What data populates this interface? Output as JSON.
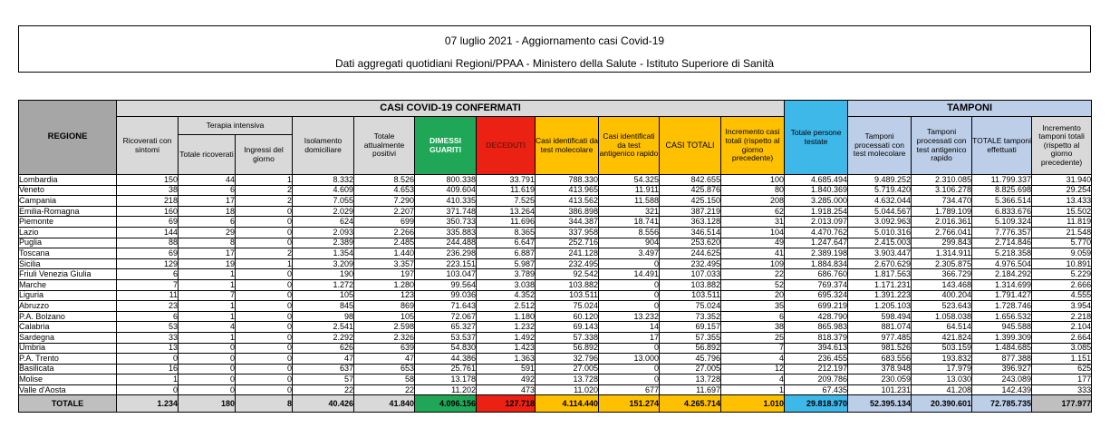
{
  "report": {
    "title_line1": "07 luglio 2021 - Aggiornamento casi Covid-19",
    "title_line2": "Dati aggregati quotidiani Regioni/PPAA - Ministero della Salute - Istituto Superiore di Sanità"
  },
  "table": {
    "group_headers": {
      "casi_confermati": "CASI COVID-19 CONFERMATI",
      "tamponi": "TAMPONI"
    },
    "columns": {
      "regione": "REGIONE",
      "ricoverati_sintomi": "Ricoverati con sintomi",
      "terapia_intensiva": "Terapia intensiva",
      "ti_totale_ricoverati": "Totale ricoverati",
      "ti_ingressi_giorno": "Ingressi del giorno",
      "isolamento_domiciliare": "Isolamento domiciliare",
      "totale_attualmente_positivi": "Totale attualmente positivi",
      "dimessi_guariti": "DIMESSI GUARITI",
      "deceduti": "DECEDUTI",
      "casi_test_molecolare": "Casi identificati da test molecolare",
      "casi_test_antigenico": "Casi identificati da test antigenico rapido",
      "casi_totali": "CASI TOTALI",
      "incremento_casi": "Incremento casi totali (rispetto al giorno precedente)",
      "persone_testate": "Totale persone testate",
      "tamponi_molecolare": "Tamponi processati con test molecolare",
      "tamponi_antigenico": "Tamponi processati con test antigenico rapido",
      "totale_tamponi": "TOTALE tamponi effettuati",
      "incremento_tamponi": "Incremento tamponi totali (rispetto al giorno precedente)"
    },
    "rows": [
      {
        "regione": "Lombardia",
        "values": [
          "150",
          "44",
          "1",
          "8.332",
          "8.526",
          "800.338",
          "33.791",
          "788.330",
          "54.325",
          "842.655",
          "100",
          "4.685.494",
          "9.489.252",
          "2.310.085",
          "11.799.337",
          "31.940"
        ]
      },
      {
        "regione": "Veneto",
        "values": [
          "38",
          "6",
          "2",
          "4.609",
          "4.653",
          "409.604",
          "11.619",
          "413.965",
          "11.911",
          "425.876",
          "80",
          "1.840.369",
          "5.719.420",
          "3.106.278",
          "8.825.698",
          "29.254"
        ]
      },
      {
        "regione": "Campania",
        "values": [
          "218",
          "17",
          "2",
          "7.055",
          "7.290",
          "410.335",
          "7.525",
          "413.562",
          "11.588",
          "425.150",
          "208",
          "3.285.000",
          "4.632.044",
          "734.470",
          "5.366.514",
          "13.433"
        ]
      },
      {
        "regione": "Emilia-Romagna",
        "values": [
          "160",
          "18",
          "0",
          "2.029",
          "2.207",
          "371.748",
          "13.264",
          "386.898",
          "321",
          "387.219",
          "62",
          "1.918.254",
          "5.044.567",
          "1.789.109",
          "6.833.676",
          "15.502"
        ]
      },
      {
        "regione": "Piemonte",
        "values": [
          "69",
          "6",
          "0",
          "624",
          "699",
          "350.733",
          "11.696",
          "344.387",
          "18.741",
          "363.128",
          "31",
          "2.013.097",
          "3.092.963",
          "2.016.361",
          "5.109.324",
          "11.819"
        ]
      },
      {
        "regione": "Lazio",
        "values": [
          "144",
          "29",
          "0",
          "2.093",
          "2.266",
          "335.883",
          "8.365",
          "337.958",
          "8.556",
          "346.514",
          "104",
          "4.470.762",
          "5.010.316",
          "2.766.041",
          "7.776.357",
          "21.548"
        ]
      },
      {
        "regione": "Puglia",
        "values": [
          "88",
          "8",
          "0",
          "2.389",
          "2.485",
          "244.488",
          "6.647",
          "252.716",
          "904",
          "253.620",
          "49",
          "1.247.647",
          "2.415.003",
          "299.843",
          "2.714.846",
          "5.770"
        ]
      },
      {
        "regione": "Toscana",
        "values": [
          "69",
          "17",
          "2",
          "1.354",
          "1.440",
          "236.298",
          "6.887",
          "241.128",
          "3.497",
          "244.625",
          "41",
          "2.389.198",
          "3.903.447",
          "1.314.911",
          "5.218.358",
          "9.059"
        ]
      },
      {
        "regione": "Sicilia",
        "values": [
          "129",
          "19",
          "1",
          "3.209",
          "3.357",
          "223.151",
          "5.987",
          "232.495",
          "0",
          "232.495",
          "109",
          "1.884.834",
          "2.670.629",
          "2.305.875",
          "4.976.504",
          "10.891"
        ]
      },
      {
        "regione": "Friuli Venezia Giulia",
        "values": [
          "6",
          "1",
          "0",
          "190",
          "197",
          "103.047",
          "3.789",
          "92.542",
          "14.491",
          "107.033",
          "22",
          "686.760",
          "1.817.563",
          "366.729",
          "2.184.292",
          "5.229"
        ]
      },
      {
        "regione": "Marche",
        "values": [
          "7",
          "1",
          "0",
          "1.272",
          "1.280",
          "99.564",
          "3.038",
          "103.882",
          "0",
          "103.882",
          "52",
          "769.374",
          "1.171.231",
          "143.468",
          "1.314.699",
          "2.666"
        ]
      },
      {
        "regione": "Liguria",
        "values": [
          "11",
          "7",
          "0",
          "105",
          "123",
          "99.036",
          "4.352",
          "103.511",
          "0",
          "103.511",
          "20",
          "695.324",
          "1.391.223",
          "400.204",
          "1.791.427",
          "4.555"
        ]
      },
      {
        "regione": "Abruzzo",
        "values": [
          "23",
          "1",
          "0",
          "845",
          "869",
          "71.643",
          "2.512",
          "75.024",
          "0",
          "75.024",
          "35",
          "699.219",
          "1.205.103",
          "523.643",
          "1.728.746",
          "3.954"
        ]
      },
      {
        "regione": "P.A. Bolzano",
        "values": [
          "6",
          "1",
          "0",
          "98",
          "105",
          "72.067",
          "1.180",
          "60.120",
          "13.232",
          "73.352",
          "6",
          "428.790",
          "598.494",
          "1.058.038",
          "1.656.532",
          "2.218"
        ]
      },
      {
        "regione": "Calabria",
        "values": [
          "53",
          "4",
          "0",
          "2.541",
          "2.598",
          "65.327",
          "1.232",
          "69.143",
          "14",
          "69.157",
          "38",
          "865.983",
          "881.074",
          "64.514",
          "945.588",
          "2.104"
        ]
      },
      {
        "regione": "Sardegna",
        "values": [
          "33",
          "1",
          "0",
          "2.292",
          "2.326",
          "53.537",
          "1.492",
          "57.338",
          "17",
          "57.355",
          "25",
          "818.379",
          "977.485",
          "421.824",
          "1.399.309",
          "2.664"
        ]
      },
      {
        "regione": "Umbria",
        "values": [
          "13",
          "0",
          "0",
          "626",
          "639",
          "54.830",
          "1.423",
          "56.892",
          "0",
          "56.892",
          "7",
          "394.613",
          "981.526",
          "503.159",
          "1.484.685",
          "3.085"
        ]
      },
      {
        "regione": "P.A. Trento",
        "values": [
          "0",
          "0",
          "0",
          "47",
          "47",
          "44.386",
          "1.363",
          "32.796",
          "13.000",
          "45.796",
          "4",
          "236.455",
          "683.556",
          "193.832",
          "877.388",
          "1.151"
        ]
      },
      {
        "regione": "Basilicata",
        "values": [
          "16",
          "0",
          "0",
          "637",
          "653",
          "25.761",
          "591",
          "27.005",
          "0",
          "27.005",
          "12",
          "212.197",
          "378.948",
          "17.979",
          "396.927",
          "625"
        ]
      },
      {
        "regione": "Molise",
        "values": [
          "1",
          "0",
          "0",
          "57",
          "58",
          "13.178",
          "492",
          "13.728",
          "0",
          "13.728",
          "4",
          "209.786",
          "230.059",
          "13.030",
          "243.089",
          "177"
        ]
      },
      {
        "regione": "Valle d'Aosta",
        "values": [
          "0",
          "0",
          "0",
          "22",
          "22",
          "11.202",
          "473",
          "11.020",
          "677",
          "11.697",
          "1",
          "67.435",
          "101.231",
          "41.208",
          "142.439",
          "333"
        ]
      }
    ],
    "total_row": {
      "label": "TOTALE",
      "values": [
        "1.234",
        "180",
        "8",
        "40.426",
        "41.840",
        "4.096.156",
        "127.718",
        "4.114.440",
        "151.274",
        "4.265.714",
        "1.010",
        "29.818.970",
        "52.395.134",
        "20.390.601",
        "72.785.735",
        "177.977"
      ]
    }
  },
  "colors": {
    "green": "#1FA757",
    "red": "#EB2114",
    "red_text": "#7B150D",
    "gold": "#FFC000",
    "cyan": "#3EB7E9",
    "light_blue": "#BDCFE8",
    "light_gray": "#D9D9D9",
    "mid_gray": "#BFBFBF",
    "dark_gray": "#A6A6A6"
  }
}
